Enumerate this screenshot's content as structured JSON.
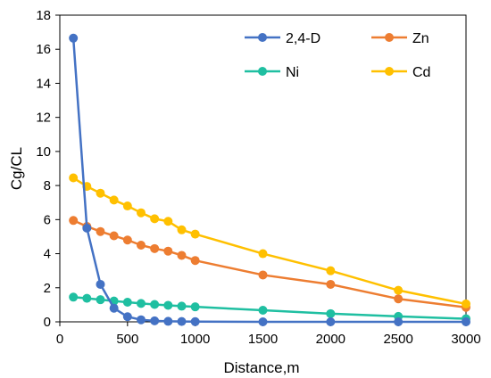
{
  "chart_data": {
    "type": "line",
    "title": "",
    "xlabel": "Distance,m",
    "ylabel": "Cg/CL",
    "xlim": [
      0,
      3000
    ],
    "ylim": [
      0,
      18
    ],
    "xticks": [
      0,
      500,
      1000,
      1500,
      2000,
      2500,
      3000
    ],
    "yticks": [
      0,
      2,
      4,
      6,
      8,
      10,
      12,
      14,
      16,
      18
    ],
    "grid": false,
    "legend_position": "top-right",
    "series": [
      {
        "name": "2,4-D",
        "color": "#4472C4",
        "x": [
          100,
          200,
          300,
          400,
          500,
          600,
          700,
          800,
          900,
          1000,
          1500,
          2000,
          2500,
          3000
        ],
        "y": [
          16.65,
          5.5,
          2.2,
          0.8,
          0.3,
          0.12,
          0.06,
          0.03,
          0.02,
          0.01,
          0.0,
          0.0,
          0.0,
          0.0
        ]
      },
      {
        "name": "Zn",
        "color": "#ED7D31",
        "x": [
          100,
          200,
          300,
          400,
          500,
          600,
          700,
          800,
          900,
          1000,
          1500,
          2000,
          2500,
          3000
        ],
        "y": [
          5.95,
          5.6,
          5.3,
          5.05,
          4.8,
          4.5,
          4.3,
          4.15,
          3.9,
          3.6,
          2.75,
          2.2,
          1.35,
          0.85
        ]
      },
      {
        "name": "Ni",
        "color": "#1FBFA1",
        "x": [
          100,
          200,
          300,
          400,
          500,
          600,
          700,
          800,
          900,
          1000,
          1500,
          2000,
          2500,
          3000
        ],
        "y": [
          1.45,
          1.38,
          1.3,
          1.22,
          1.15,
          1.08,
          1.02,
          0.97,
          0.92,
          0.88,
          0.68,
          0.48,
          0.32,
          0.18
        ]
      },
      {
        "name": "Cd",
        "color": "#FFC000",
        "x": [
          100,
          200,
          300,
          400,
          500,
          600,
          700,
          800,
          900,
          1000,
          1500,
          2000,
          2500,
          3000
        ],
        "y": [
          8.45,
          7.95,
          7.55,
          7.15,
          6.8,
          6.4,
          6.05,
          5.9,
          5.4,
          5.15,
          4.0,
          3.0,
          1.85,
          1.05
        ]
      }
    ]
  }
}
